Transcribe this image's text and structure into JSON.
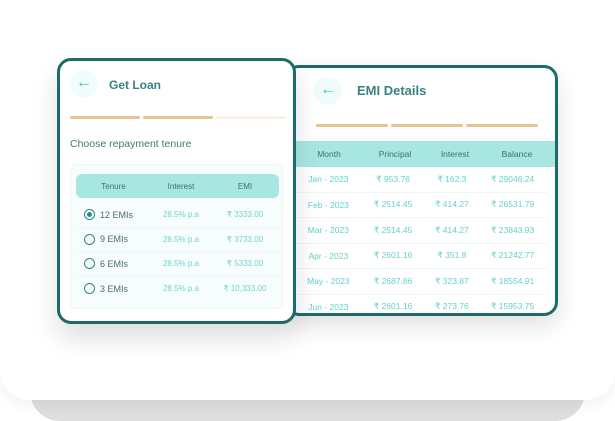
{
  "colors": {
    "frame": "#1d6a6a",
    "header_bg": "#a8e6e2",
    "progress_active": "#e6c48e",
    "progress_inactive": "#fbf1e3",
    "value_text": "#6fd3cd",
    "title_text": "#3d8080"
  },
  "loan_card": {
    "back_icon": "arrow-left-icon",
    "title": "Get Loan",
    "progress": [
      {
        "state": "active"
      },
      {
        "state": "active"
      },
      {
        "state": "inactive"
      }
    ],
    "subtitle": "Choose repayment tenure",
    "table": {
      "headers": [
        "Tenure",
        "Interest",
        "EMI"
      ],
      "rows": [
        {
          "tenure": "12 EMIs",
          "interest": "28.5% p.a",
          "emi": "₹ 3333.00",
          "selected": true
        },
        {
          "tenure": "9 EMIs",
          "interest": "28.5% p.a",
          "emi": "₹ 3733.00",
          "selected": false
        },
        {
          "tenure": "6 EMIs",
          "interest": "28.5% p.a",
          "emi": "₹ 5333.00",
          "selected": false
        },
        {
          "tenure": "3 EMIs",
          "interest": "28.5% p.a",
          "emi": "₹ 10,333.00",
          "selected": false
        }
      ]
    }
  },
  "emi_card": {
    "back_icon": "arrow-left-icon",
    "title": "EMI Details",
    "progress": [
      {
        "state": "active"
      },
      {
        "state": "active"
      },
      {
        "state": "active"
      }
    ],
    "table": {
      "headers": [
        "Month",
        "Principal",
        "Interest",
        "Balance"
      ],
      "rows": [
        {
          "month": "Jan - 2023",
          "principal": "₹ 953.76",
          "interest": "₹ 162.3",
          "balance": "₹ 29046.24"
        },
        {
          "month": "Feb - 2023",
          "principal": "₹ 2514.45",
          "interest": "₹ 414.27",
          "balance": "₹ 26531.79"
        },
        {
          "month": "Mar - 2023",
          "principal": "₹ 2514.45",
          "interest": "₹ 414.27",
          "balance": "₹ 23843.93"
        },
        {
          "month": "Apr - 2023",
          "principal": "₹ 2601.16",
          "interest": "₹ 351.8",
          "balance": "₹ 21242.77"
        },
        {
          "month": "May - 2023",
          "principal": "₹ 2687.86",
          "interest": "₹ 323.87",
          "balance": "₹ 18554.91"
        },
        {
          "month": "Jun - 2023",
          "principal": "₹ 2601.16",
          "interest": "₹ 273.76",
          "balance": "₹ 15953.75"
        }
      ]
    }
  }
}
